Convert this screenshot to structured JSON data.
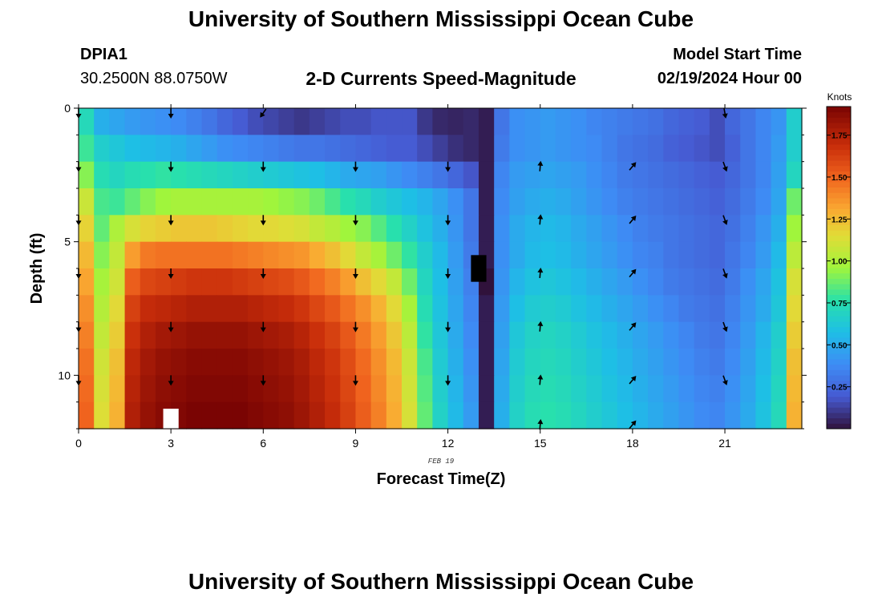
{
  "header": {
    "title": "University of Southern Mississippi Ocean Cube",
    "station": "DPIA1",
    "coords": "30.2500N  88.0750W",
    "plot_title": "2-D Currents Speed-Magnitude",
    "model_label": "Model Start Time",
    "model_time": "02/19/2024 Hour 00"
  },
  "footer": {
    "title": "University of Southern Mississippi Ocean Cube"
  },
  "chart_data": {
    "type": "heatmap",
    "title": "2-D Currents Speed-Magnitude",
    "xlabel": "Forecast Time(Z)",
    "ylabel": "Depth (ft)",
    "date_label": "FEB 19",
    "xlim": [
      0,
      23.5
    ],
    "ylim": [
      0,
      12
    ],
    "y_inverted": true,
    "x_ticks": [
      0,
      3,
      6,
      9,
      12,
      15,
      18,
      21
    ],
    "y_ticks": [
      0,
      5,
      10
    ],
    "colorbar": {
      "label": "Knots",
      "min": 0.0,
      "max": 1.92,
      "ticks": [
        0.25,
        0.5,
        0.75,
        1.0,
        1.25,
        1.5,
        1.75
      ],
      "tick_labels": [
        "0.25",
        "0.50",
        "0.75",
        "1.00",
        "1.25",
        "1.50",
        "1.75"
      ]
    },
    "depths_ft": [
      0,
      1,
      2,
      3,
      4,
      5,
      6,
      7,
      8,
      9,
      10,
      11
    ],
    "hours": [
      0,
      0.5,
      1,
      1.5,
      2,
      2.5,
      3,
      3.5,
      4,
      4.5,
      5,
      5.5,
      6,
      6.5,
      7,
      7.5,
      8,
      8.5,
      9,
      9.5,
      10,
      10.5,
      11,
      11.5,
      12,
      12.5,
      13,
      13.5,
      14,
      14.5,
      15,
      15.5,
      16,
      16.5,
      17,
      17.5,
      18,
      18.5,
      19,
      19.5,
      20,
      20.5,
      21,
      21.5,
      22,
      22.5,
      23
    ],
    "speed_knots": [
      [
        0.72,
        0.52,
        0.48,
        0.44,
        0.42,
        0.4,
        0.38,
        0.34,
        0.3,
        0.24,
        0.2,
        0.16,
        0.14,
        0.12,
        0.1,
        0.12,
        0.14,
        0.16,
        0.16,
        0.18,
        0.18,
        0.18,
        0.1,
        0.06,
        0.05,
        0.06,
        0.03,
        0.3,
        0.4,
        0.42,
        0.44,
        0.42,
        0.4,
        0.36,
        0.34,
        0.32,
        0.3,
        0.28,
        0.24,
        0.22,
        0.2,
        0.16,
        0.24,
        0.3,
        0.36,
        0.42,
        0.66
      ],
      [
        0.8,
        0.66,
        0.62,
        0.58,
        0.56,
        0.54,
        0.52,
        0.48,
        0.44,
        0.4,
        0.38,
        0.36,
        0.34,
        0.32,
        0.3,
        0.3,
        0.28,
        0.26,
        0.24,
        0.22,
        0.2,
        0.2,
        0.16,
        0.12,
        0.08,
        0.06,
        0.03,
        0.32,
        0.4,
        0.42,
        0.44,
        0.42,
        0.4,
        0.38,
        0.34,
        0.3,
        0.28,
        0.26,
        0.22,
        0.2,
        0.18,
        0.16,
        0.22,
        0.3,
        0.36,
        0.44,
        0.66
      ],
      [
        0.92,
        0.74,
        0.7,
        0.74,
        0.76,
        0.78,
        0.76,
        0.74,
        0.72,
        0.7,
        0.68,
        0.66,
        0.64,
        0.62,
        0.6,
        0.58,
        0.54,
        0.5,
        0.48,
        0.46,
        0.42,
        0.38,
        0.34,
        0.3,
        0.24,
        0.18,
        0.03,
        0.36,
        0.44,
        0.46,
        0.48,
        0.46,
        0.44,
        0.4,
        0.36,
        0.32,
        0.3,
        0.28,
        0.26,
        0.24,
        0.22,
        0.2,
        0.24,
        0.3,
        0.36,
        0.46,
        0.7
      ],
      [
        1.08,
        0.82,
        0.8,
        0.86,
        0.92,
        0.96,
        0.98,
        0.98,
        0.98,
        0.98,
        0.98,
        0.98,
        0.96,
        0.94,
        0.92,
        0.88,
        0.82,
        0.76,
        0.72,
        0.66,
        0.62,
        0.58,
        0.54,
        0.48,
        0.4,
        0.3,
        0.03,
        0.38,
        0.46,
        0.5,
        0.52,
        0.5,
        0.46,
        0.42,
        0.38,
        0.34,
        0.32,
        0.3,
        0.28,
        0.26,
        0.24,
        0.22,
        0.26,
        0.32,
        0.38,
        0.48,
        0.88
      ],
      [
        1.18,
        0.86,
        1.0,
        1.12,
        1.18,
        1.2,
        1.22,
        1.22,
        1.22,
        1.2,
        1.18,
        1.16,
        1.16,
        1.14,
        1.12,
        1.06,
        1.02,
        0.96,
        0.92,
        0.84,
        0.76,
        0.68,
        0.6,
        0.52,
        0.42,
        0.3,
        0.03,
        0.4,
        0.5,
        0.54,
        0.56,
        0.54,
        0.5,
        0.46,
        0.42,
        0.38,
        0.34,
        0.32,
        0.3,
        0.28,
        0.26,
        0.24,
        0.28,
        0.34,
        0.42,
        0.52,
        0.96
      ],
      [
        1.26,
        0.92,
        1.06,
        1.34,
        1.44,
        1.46,
        1.46,
        1.46,
        1.46,
        1.46,
        1.44,
        1.42,
        1.4,
        1.38,
        1.36,
        1.3,
        1.24,
        1.16,
        1.06,
        0.98,
        0.88,
        0.78,
        0.66,
        0.56,
        0.44,
        0.32,
        0.03,
        0.4,
        0.5,
        0.56,
        0.58,
        0.56,
        0.52,
        0.48,
        0.44,
        0.4,
        0.36,
        0.34,
        0.3,
        0.28,
        0.26,
        0.24,
        0.3,
        0.36,
        0.44,
        0.56,
        1.04
      ],
      [
        1.32,
        0.98,
        1.1,
        1.52,
        1.6,
        1.62,
        1.64,
        1.66,
        1.66,
        1.66,
        1.64,
        1.62,
        1.6,
        1.58,
        1.54,
        1.48,
        1.42,
        1.34,
        1.24,
        1.16,
        1.06,
        0.88,
        0.7,
        0.58,
        0.46,
        0.34,
        0.0,
        0.42,
        0.54,
        0.6,
        0.62,
        0.6,
        0.56,
        0.52,
        0.48,
        0.44,
        0.4,
        0.36,
        0.32,
        0.3,
        0.28,
        0.26,
        0.32,
        0.4,
        0.48,
        0.6,
        1.12
      ],
      [
        1.38,
        1.02,
        1.16,
        1.62,
        1.7,
        1.72,
        1.74,
        1.76,
        1.76,
        1.76,
        1.76,
        1.74,
        1.72,
        1.7,
        1.66,
        1.6,
        1.54,
        1.46,
        1.38,
        1.28,
        1.16,
        0.98,
        0.74,
        0.6,
        0.48,
        0.36,
        0.03,
        0.44,
        0.58,
        0.64,
        0.66,
        0.64,
        0.6,
        0.56,
        0.52,
        0.48,
        0.44,
        0.4,
        0.36,
        0.32,
        0.3,
        0.28,
        0.34,
        0.42,
        0.5,
        0.62,
        1.16
      ],
      [
        1.42,
        1.06,
        1.2,
        1.68,
        1.76,
        1.8,
        1.82,
        1.84,
        1.84,
        1.84,
        1.84,
        1.82,
        1.8,
        1.78,
        1.74,
        1.68,
        1.62,
        1.54,
        1.44,
        1.34,
        1.22,
        1.04,
        0.78,
        0.62,
        0.5,
        0.38,
        0.03,
        0.46,
        0.62,
        0.68,
        0.7,
        0.68,
        0.64,
        0.6,
        0.56,
        0.52,
        0.48,
        0.44,
        0.4,
        0.36,
        0.32,
        0.3,
        0.36,
        0.44,
        0.54,
        0.66,
        1.2
      ],
      [
        1.46,
        1.1,
        1.24,
        1.72,
        1.8,
        1.84,
        1.86,
        1.88,
        1.88,
        1.88,
        1.88,
        1.86,
        1.84,
        1.82,
        1.78,
        1.72,
        1.66,
        1.58,
        1.48,
        1.38,
        1.26,
        1.08,
        0.82,
        0.64,
        0.52,
        0.4,
        0.03,
        0.48,
        0.64,
        0.7,
        0.72,
        0.7,
        0.66,
        0.62,
        0.58,
        0.54,
        0.5,
        0.46,
        0.42,
        0.38,
        0.34,
        0.32,
        0.38,
        0.46,
        0.56,
        0.68,
        1.24
      ],
      [
        1.48,
        1.12,
        1.26,
        1.74,
        1.82,
        1.86,
        1.88,
        1.9,
        1.9,
        1.9,
        1.9,
        1.88,
        1.86,
        1.84,
        1.8,
        1.74,
        1.68,
        1.6,
        1.5,
        1.4,
        1.28,
        1.1,
        0.84,
        0.66,
        0.54,
        0.42,
        0.03,
        0.5,
        0.66,
        0.72,
        0.74,
        0.72,
        0.68,
        0.64,
        0.6,
        0.56,
        0.52,
        0.48,
        0.44,
        0.4,
        0.36,
        0.34,
        0.4,
        0.48,
        0.58,
        0.7,
        1.26
      ],
      [
        1.5,
        1.14,
        1.28,
        1.76,
        1.84,
        1.88,
        1.9,
        1.92,
        1.92,
        1.92,
        1.92,
        1.9,
        1.88,
        1.86,
        1.82,
        1.76,
        1.7,
        1.62,
        1.52,
        1.42,
        1.3,
        1.12,
        0.86,
        0.68,
        0.56,
        0.44,
        0.03,
        0.52,
        0.68,
        0.74,
        0.76,
        0.74,
        0.7,
        0.66,
        0.62,
        0.58,
        0.54,
        0.5,
        0.46,
        0.42,
        0.38,
        0.36,
        0.42,
        0.5,
        0.6,
        0.72,
        1.28
      ]
    ],
    "vector_hours": [
      0,
      3,
      6,
      9,
      12,
      15,
      18,
      21
    ],
    "vector_depths_ft": [
      0,
      2,
      4,
      6,
      8,
      10,
      12
    ],
    "vector_direction_deg": [
      [
        180,
        180,
        215,
        null,
        null,
        null,
        null,
        170
      ],
      [
        180,
        180,
        180,
        180,
        180,
        5,
        40,
        160
      ],
      [
        180,
        180,
        180,
        180,
        180,
        5,
        40,
        160
      ],
      [
        180,
        180,
        180,
        180,
        180,
        5,
        40,
        160
      ],
      [
        180,
        180,
        180,
        180,
        180,
        5,
        40,
        160
      ],
      [
        180,
        180,
        180,
        180,
        180,
        5,
        40,
        160
      ],
      [
        null,
        null,
        null,
        null,
        null,
        5,
        40,
        null
      ]
    ],
    "missing_cells": [
      {
        "hour": 3,
        "depth_ft": 11.75,
        "color": "#ffffff"
      },
      {
        "hour": 13,
        "depth_ft": 6,
        "color": "#000000"
      }
    ]
  }
}
